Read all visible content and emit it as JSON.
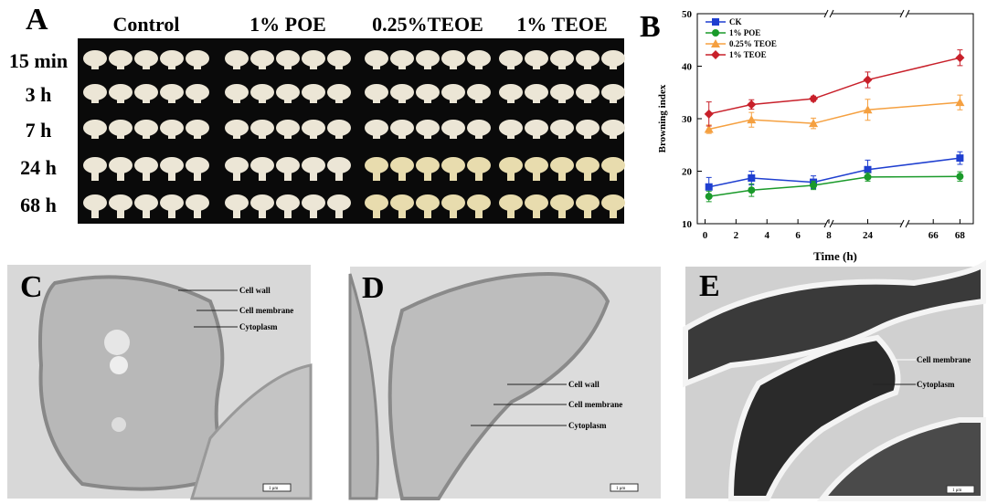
{
  "panel_a": {
    "label": "A",
    "columns": [
      "Control",
      "1% POE",
      "0.25%TEOE",
      "1% TEOE"
    ],
    "rows": [
      "15 min",
      "3 h",
      "7 h",
      "24 h",
      "68 h"
    ]
  },
  "chart_data": {
    "type": "line",
    "panel_label": "B",
    "x_label": "Time (h)",
    "y_label": "Browning index",
    "x": [
      0.25,
      3,
      7,
      24,
      68
    ],
    "x_segments": [
      [
        -0.5,
        8
      ],
      [
        22,
        26
      ],
      [
        64,
        69
      ]
    ],
    "xticks": [
      0,
      2,
      4,
      6,
      8,
      24,
      66,
      68
    ],
    "ylim": [
      10,
      50
    ],
    "yticks": [
      10,
      20,
      30,
      40,
      50
    ],
    "series": [
      {
        "name": "CK",
        "color": "#1f3fd0",
        "marker": "square",
        "values": [
          17.0,
          18.7,
          17.9,
          20.3,
          22.5
        ],
        "errors": [
          1.8,
          1.3,
          1.2,
          1.8,
          1.2
        ]
      },
      {
        "name": "1% POE",
        "color": "#1a9a2a",
        "marker": "circle",
        "values": [
          15.2,
          16.4,
          17.3,
          18.9,
          19.0
        ],
        "errors": [
          1.0,
          1.2,
          0.8,
          0.8,
          0.9
        ]
      },
      {
        "name": "0.25% TEOE",
        "color": "#f5a040",
        "marker": "triangle",
        "values": [
          28.0,
          29.8,
          29.1,
          31.7,
          33.1
        ],
        "errors": [
          0.8,
          1.4,
          1.0,
          2.0,
          1.4
        ]
      },
      {
        "name": "1% TEOE",
        "color": "#c8202a",
        "marker": "diamond",
        "values": [
          30.9,
          32.7,
          33.8,
          37.4,
          41.6
        ],
        "errors": [
          2.3,
          0.9,
          0.5,
          1.5,
          1.5
        ]
      }
    ]
  },
  "panel_c": {
    "label": "C",
    "annotations": [
      "Cell wall",
      "Cell membrane",
      "Cytoplasm"
    ],
    "scale_bar": "1 μm"
  },
  "panel_d": {
    "label": "D",
    "annotations": [
      "Cell wall",
      "Cell membrane",
      "Cytoplasm"
    ],
    "scale_bar": "1 μm"
  },
  "panel_e": {
    "label": "E",
    "annotations": [
      "Cell membrane",
      "Cytoplasm"
    ],
    "scale_bar": "1 μm"
  }
}
